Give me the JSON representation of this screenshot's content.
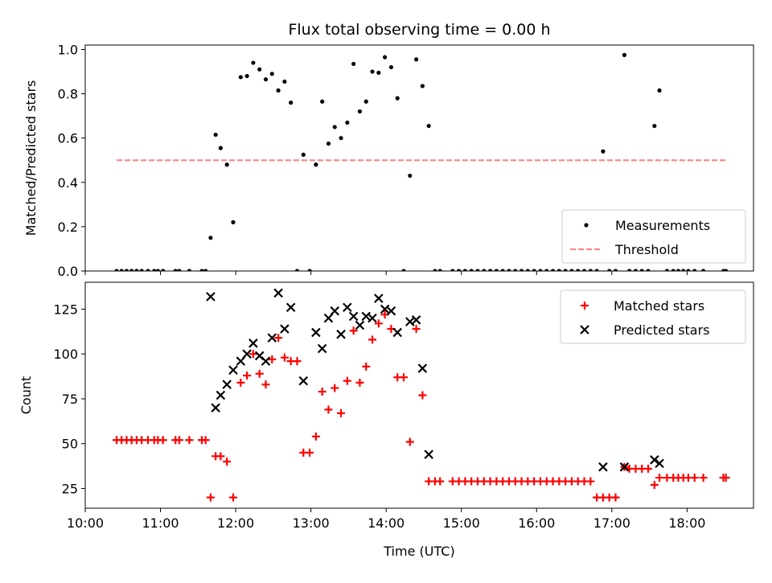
{
  "chart_data": [
    {
      "type": "scatter",
      "title": "Flux total observing time = 0.00 h",
      "xlabel": "",
      "ylabel": "Matched/Predicted stars",
      "xlim": [
        "10:00",
        "18:53"
      ],
      "ylim": [
        0,
        1.02
      ],
      "yticks": [
        "0.0",
        "0.2",
        "0.4",
        "0.6",
        "0.8",
        "1.0"
      ],
      "xticks": [
        "10:00",
        "11:00",
        "12:00",
        "13:00",
        "14:00",
        "15:00",
        "16:00",
        "17:00",
        "18:00"
      ],
      "show_xtick_labels": false,
      "legend_position": "lower-right",
      "series": [
        {
          "name": "Measurements",
          "marker": "dot",
          "color": "#000000",
          "points": [
            [
              "10:25",
              0
            ],
            [
              "10:29",
              0
            ],
            [
              "10:33",
              0
            ],
            [
              "10:37",
              0
            ],
            [
              "10:41",
              0
            ],
            [
              "10:45",
              0
            ],
            [
              "10:50",
              0
            ],
            [
              "10:55",
              0
            ],
            [
              "10:58",
              0
            ],
            [
              "11:02",
              0
            ],
            [
              "11:12",
              0
            ],
            [
              "11:15",
              0
            ],
            [
              "11:23",
              0
            ],
            [
              "11:33",
              0
            ],
            [
              "11:36",
              0
            ],
            [
              "11:40",
              0.15
            ],
            [
              "11:44",
              0.615
            ],
            [
              "11:48",
              0.555
            ],
            [
              "11:53",
              0.48
            ],
            [
              "11:58",
              0.22
            ],
            [
              "12:04",
              0.875
            ],
            [
              "12:09",
              0.88
            ],
            [
              "12:14",
              0.94
            ],
            [
              "12:19",
              0.91
            ],
            [
              "12:24",
              0.865
            ],
            [
              "12:29",
              0.89
            ],
            [
              "12:34",
              0.815
            ],
            [
              "12:39",
              0.855
            ],
            [
              "12:44",
              0.76
            ],
            [
              "12:49",
              0
            ],
            [
              "12:54",
              0.525
            ],
            [
              "12:59",
              0
            ],
            [
              "13:04",
              0.48
            ],
            [
              "13:09",
              0.765
            ],
            [
              "13:14",
              0.575
            ],
            [
              "13:19",
              0.65
            ],
            [
              "13:24",
              0.6
            ],
            [
              "13:29",
              0.67
            ],
            [
              "13:34",
              0.935
            ],
            [
              "13:39",
              0.72
            ],
            [
              "13:44",
              0.765
            ],
            [
              "13:49",
              0.9
            ],
            [
              "13:54",
              0.895
            ],
            [
              "13:59",
              0.965
            ],
            [
              "14:04",
              0.92
            ],
            [
              "14:09",
              0.78
            ],
            [
              "14:14",
              0
            ],
            [
              "14:19",
              0.43
            ],
            [
              "14:24",
              0.955
            ],
            [
              "14:29",
              0.835
            ],
            [
              "14:34",
              0.655
            ],
            [
              "14:39",
              0
            ],
            [
              "14:43",
              0
            ],
            [
              "14:53",
              0
            ],
            [
              "14:58",
              0
            ],
            [
              "15:03",
              0
            ],
            [
              "15:08",
              0
            ],
            [
              "15:13",
              0
            ],
            [
              "15:18",
              0
            ],
            [
              "15:23",
              0
            ],
            [
              "15:28",
              0
            ],
            [
              "15:33",
              0
            ],
            [
              "15:38",
              0
            ],
            [
              "15:43",
              0
            ],
            [
              "15:48",
              0
            ],
            [
              "15:53",
              0
            ],
            [
              "15:58",
              0
            ],
            [
              "16:03",
              0
            ],
            [
              "16:08",
              0
            ],
            [
              "16:13",
              0
            ],
            [
              "16:18",
              0
            ],
            [
              "16:23",
              0
            ],
            [
              "16:28",
              0
            ],
            [
              "16:33",
              0
            ],
            [
              "16:38",
              0
            ],
            [
              "16:43",
              0
            ],
            [
              "16:48",
              0
            ],
            [
              "16:53",
              0.54
            ],
            [
              "16:58",
              0
            ],
            [
              "17:03",
              0
            ],
            [
              "17:10",
              0.975
            ],
            [
              "17:14",
              0
            ],
            [
              "17:19",
              0
            ],
            [
              "17:24",
              0
            ],
            [
              "17:29",
              0
            ],
            [
              "17:34",
              0.655
            ],
            [
              "17:38",
              0.815
            ],
            [
              "17:44",
              0
            ],
            [
              "17:49",
              0
            ],
            [
              "17:53",
              0
            ],
            [
              "17:57",
              0
            ],
            [
              "18:01",
              0
            ],
            [
              "18:06",
              0
            ],
            [
              "18:13",
              0
            ],
            [
              "18:29",
              0
            ],
            [
              "18:31",
              0
            ]
          ]
        },
        {
          "name": "Threshold",
          "line": "dashed",
          "color": "#ff8080",
          "points": [
            [
              "10:25",
              0.5
            ],
            [
              "18:31",
              0.5
            ]
          ]
        }
      ]
    },
    {
      "type": "scatter",
      "title": "",
      "xlabel": "Time (UTC)",
      "ylabel": "Count",
      "xlim": [
        "10:00",
        "18:53"
      ],
      "ylim": [
        14,
        140
      ],
      "yticks": [
        "25",
        "50",
        "75",
        "100",
        "125"
      ],
      "xticks": [
        "10:00",
        "11:00",
        "12:00",
        "13:00",
        "14:00",
        "15:00",
        "16:00",
        "17:00",
        "18:00"
      ],
      "show_xtick_labels": true,
      "legend_position": "upper-right",
      "series": [
        {
          "name": "Matched stars",
          "marker": "plus",
          "color": "#ff0000",
          "points": [
            [
              "10:25",
              52
            ],
            [
              "10:29",
              52
            ],
            [
              "10:33",
              52
            ],
            [
              "10:37",
              52
            ],
            [
              "10:41",
              52
            ],
            [
              "10:45",
              52
            ],
            [
              "10:50",
              52
            ],
            [
              "10:55",
              52
            ],
            [
              "10:58",
              52
            ],
            [
              "11:02",
              52
            ],
            [
              "11:12",
              52
            ],
            [
              "11:15",
              52
            ],
            [
              "11:23",
              52
            ],
            [
              "11:33",
              52
            ],
            [
              "11:36",
              52
            ],
            [
              "11:40",
              20
            ],
            [
              "11:44",
              43
            ],
            [
              "11:48",
              43
            ],
            [
              "11:53",
              40
            ],
            [
              "11:58",
              20
            ],
            [
              "12:04",
              84
            ],
            [
              "12:09",
              88
            ],
            [
              "12:14",
              100
            ],
            [
              "12:19",
              89
            ],
            [
              "12:24",
              83
            ],
            [
              "12:29",
              97
            ],
            [
              "12:34",
              109
            ],
            [
              "12:39",
              98
            ],
            [
              "12:44",
              96
            ],
            [
              "12:49",
              96
            ],
            [
              "12:54",
              45
            ],
            [
              "12:59",
              45
            ],
            [
              "13:04",
              54
            ],
            [
              "13:09",
              79
            ],
            [
              "13:14",
              69
            ],
            [
              "13:19",
              81
            ],
            [
              "13:24",
              67
            ],
            [
              "13:29",
              85
            ],
            [
              "13:34",
              113
            ],
            [
              "13:39",
              84
            ],
            [
              "13:44",
              93
            ],
            [
              "13:49",
              108
            ],
            [
              "13:54",
              117
            ],
            [
              "13:59",
              122
            ],
            [
              "14:04",
              114
            ],
            [
              "14:09",
              87
            ],
            [
              "14:14",
              87
            ],
            [
              "14:19",
              51
            ],
            [
              "14:24",
              114
            ],
            [
              "14:29",
              77
            ],
            [
              "14:34",
              29
            ],
            [
              "14:39",
              29
            ],
            [
              "14:43",
              29
            ],
            [
              "14:53",
              29
            ],
            [
              "14:58",
              29
            ],
            [
              "15:03",
              29
            ],
            [
              "15:08",
              29
            ],
            [
              "15:13",
              29
            ],
            [
              "15:18",
              29
            ],
            [
              "15:23",
              29
            ],
            [
              "15:28",
              29
            ],
            [
              "15:33",
              29
            ],
            [
              "15:38",
              29
            ],
            [
              "15:43",
              29
            ],
            [
              "15:48",
              29
            ],
            [
              "15:53",
              29
            ],
            [
              "15:58",
              29
            ],
            [
              "16:03",
              29
            ],
            [
              "16:08",
              29
            ],
            [
              "16:13",
              29
            ],
            [
              "16:18",
              29
            ],
            [
              "16:23",
              29
            ],
            [
              "16:28",
              29
            ],
            [
              "16:33",
              29
            ],
            [
              "16:38",
              29
            ],
            [
              "16:43",
              29
            ],
            [
              "16:48",
              20
            ],
            [
              "16:53",
              20
            ],
            [
              "16:58",
              20
            ],
            [
              "17:03",
              20
            ],
            [
              "17:10",
              37
            ],
            [
              "17:14",
              36
            ],
            [
              "17:19",
              36
            ],
            [
              "17:24",
              36
            ],
            [
              "17:29",
              36
            ],
            [
              "17:34",
              27
            ],
            [
              "17:38",
              31
            ],
            [
              "17:44",
              31
            ],
            [
              "17:49",
              31
            ],
            [
              "17:53",
              31
            ],
            [
              "17:57",
              31
            ],
            [
              "18:01",
              31
            ],
            [
              "18:06",
              31
            ],
            [
              "18:13",
              31
            ],
            [
              "18:29",
              31
            ],
            [
              "18:31",
              31
            ]
          ]
        },
        {
          "name": "Predicted stars",
          "marker": "x",
          "color": "#000000",
          "points": [
            [
              "11:40",
              132
            ],
            [
              "11:44",
              70
            ],
            [
              "11:48",
              77
            ],
            [
              "11:53",
              83
            ],
            [
              "11:58",
              91
            ],
            [
              "12:04",
              96
            ],
            [
              "12:09",
              100
            ],
            [
              "12:14",
              106
            ],
            [
              "12:19",
              99
            ],
            [
              "12:24",
              96
            ],
            [
              "12:29",
              109
            ],
            [
              "12:34",
              134
            ],
            [
              "12:39",
              114
            ],
            [
              "12:44",
              126
            ],
            [
              "12:54",
              85
            ],
            [
              "13:04",
              112
            ],
            [
              "13:09",
              103
            ],
            [
              "13:14",
              120
            ],
            [
              "13:19",
              124
            ],
            [
              "13:24",
              111
            ],
            [
              "13:29",
              126
            ],
            [
              "13:34",
              121
            ],
            [
              "13:39",
              116
            ],
            [
              "13:44",
              121
            ],
            [
              "13:49",
              120
            ],
            [
              "13:54",
              131
            ],
            [
              "13:59",
              125
            ],
            [
              "14:04",
              124
            ],
            [
              "14:09",
              112
            ],
            [
              "14:19",
              118
            ],
            [
              "14:24",
              119
            ],
            [
              "14:29",
              92
            ],
            [
              "14:34",
              44
            ],
            [
              "16:53",
              37
            ],
            [
              "17:10",
              37
            ],
            [
              "17:34",
              41
            ],
            [
              "17:38",
              39
            ]
          ]
        }
      ]
    }
  ]
}
